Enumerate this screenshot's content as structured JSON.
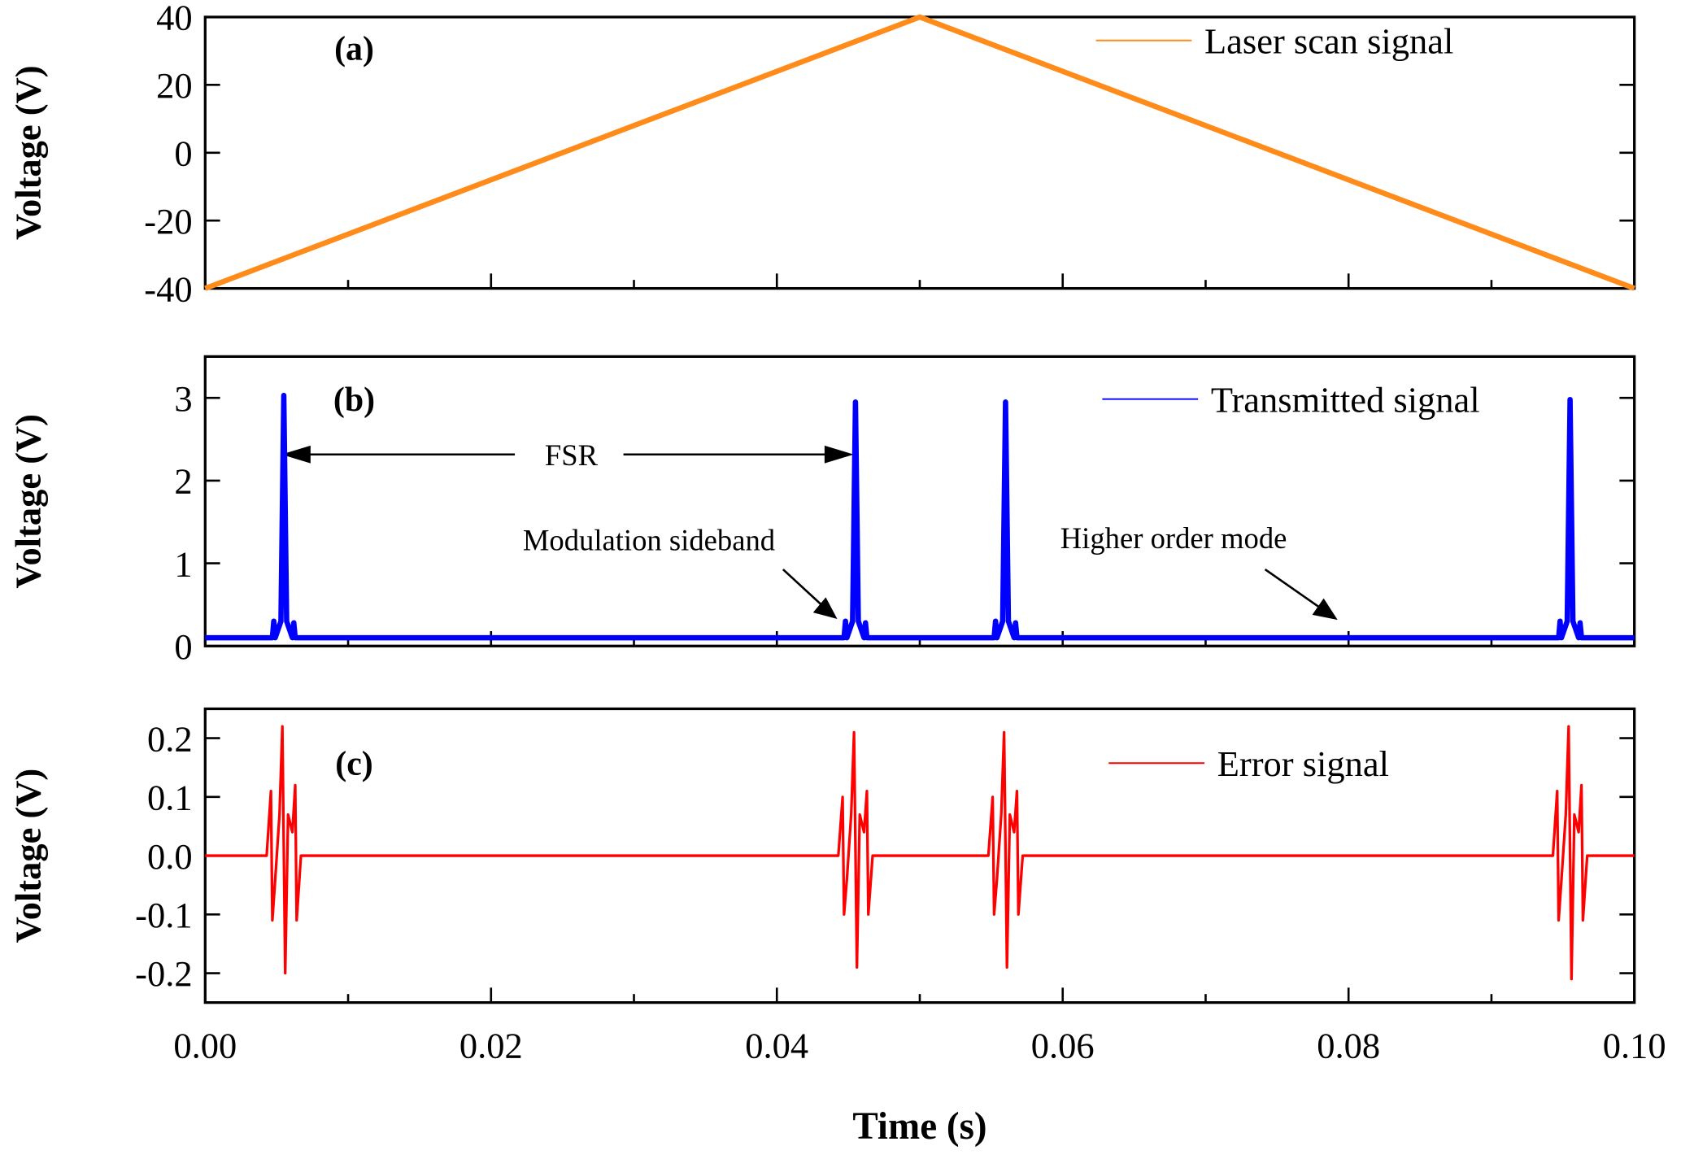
{
  "chart_data": [
    {
      "type": "line",
      "panel_label": "(a)",
      "ylabel": "Voltage (V)",
      "xlim": [
        0,
        0.1
      ],
      "ylim": [
        -40,
        40
      ],
      "yticks": [
        -40,
        -20,
        0,
        20,
        40
      ],
      "series": [
        {
          "name": "Laser scan signal",
          "color": "#ff8c1a",
          "x": [
            0,
            0.05,
            0.1
          ],
          "values": [
            -40,
            40,
            -40
          ]
        }
      ]
    },
    {
      "type": "line",
      "panel_label": "(b)",
      "ylabel": "Voltage (V)",
      "xlim": [
        0,
        0.1
      ],
      "ylim": [
        0,
        3.5
      ],
      "yticks": [
        0,
        1,
        2,
        3
      ],
      "annotations": [
        "FSR",
        "Modulation sideband",
        "Higher order mode"
      ],
      "series": [
        {
          "name": "Transmitted signal",
          "color": "#0000ff",
          "x": [
            0,
            0.0047,
            0.0048,
            0.0049,
            0.0053,
            0.0055,
            0.0057,
            0.0061,
            0.0062,
            0.0063,
            0.0447,
            0.0448,
            0.0449,
            0.0453,
            0.0455,
            0.0457,
            0.0461,
            0.0462,
            0.0463,
            0.0552,
            0.0553,
            0.0554,
            0.0558,
            0.056,
            0.0562,
            0.0566,
            0.0567,
            0.0568,
            0.0947,
            0.0948,
            0.0949,
            0.0953,
            0.0955,
            0.0957,
            0.0961,
            0.0962,
            0.0963,
            0.1
          ],
          "values": [
            0.1,
            0.1,
            0.3,
            0.1,
            0.3,
            3.03,
            0.3,
            0.1,
            0.28,
            0.1,
            0.1,
            0.3,
            0.1,
            0.3,
            2.95,
            0.3,
            0.1,
            0.28,
            0.1,
            0.1,
            0.3,
            0.1,
            0.3,
            2.95,
            0.3,
            0.1,
            0.28,
            0.1,
            0.1,
            0.3,
            0.1,
            0.3,
            2.98,
            0.3,
            0.1,
            0.28,
            0.1,
            0.1
          ]
        }
      ]
    },
    {
      "type": "line",
      "panel_label": "(c)",
      "ylabel": "Voltage (V)",
      "xlabel": "Time (s)",
      "xlim": [
        0,
        0.1
      ],
      "ylim": [
        -0.25,
        0.25
      ],
      "yticks": [
        -0.2,
        -0.1,
        {
          "value": 0,
          "label": "0.0"
        },
        0.1,
        0.2
      ],
      "xticks": [
        {
          "value": 0,
          "label": "0.00"
        },
        {
          "value": 0.02,
          "label": "0.02"
        },
        {
          "value": 0.04,
          "label": "0.04"
        },
        {
          "value": 0.06,
          "label": "0.06"
        },
        {
          "value": 0.08,
          "label": "0.08"
        },
        {
          "value": 0.1,
          "label": "0.10"
        }
      ],
      "series": [
        {
          "name": "Error signal",
          "color": "#ff0000",
          "x": [
            0,
            0.0043,
            0.0046,
            0.0047,
            0.0049,
            0.0052,
            0.0054,
            0.0056,
            0.0058,
            0.0061,
            0.0063,
            0.0064,
            0.0067,
            0.0443,
            0.0446,
            0.0447,
            0.0449,
            0.0452,
            0.0454,
            0.0456,
            0.0458,
            0.0461,
            0.0463,
            0.0464,
            0.0467,
            0.0548,
            0.0551,
            0.0552,
            0.0554,
            0.0557,
            0.0559,
            0.0561,
            0.0563,
            0.0566,
            0.0568,
            0.0569,
            0.0572,
            0.0943,
            0.0946,
            0.0947,
            0.0949,
            0.0952,
            0.0954,
            0.0956,
            0.0958,
            0.0961,
            0.0963,
            0.0964,
            0.0967,
            0.1
          ],
          "values": [
            0,
            0,
            0.11,
            -0.11,
            -0.04,
            0.07,
            0.22,
            -0.2,
            0.07,
            0.04,
            0.12,
            -0.11,
            0,
            0,
            0.1,
            -0.1,
            -0.04,
            0.07,
            0.21,
            -0.19,
            0.07,
            0.04,
            0.11,
            -0.1,
            0,
            0,
            0.1,
            -0.1,
            -0.04,
            0.07,
            0.21,
            -0.19,
            0.07,
            0.04,
            0.11,
            -0.1,
            0,
            0,
            0.11,
            -0.11,
            -0.04,
            0.07,
            0.22,
            -0.21,
            0.07,
            0.04,
            0.12,
            -0.11,
            0,
            0
          ]
        }
      ]
    }
  ]
}
